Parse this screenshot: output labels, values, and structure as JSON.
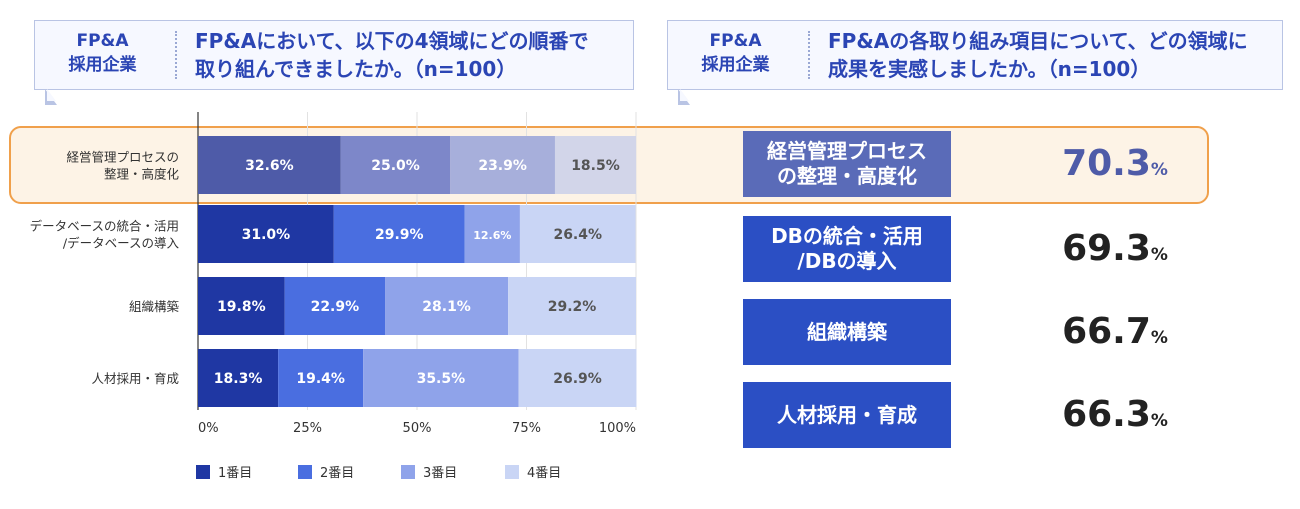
{
  "left_header": {
    "tag_line1": "FP&A",
    "tag_line2": "採用企業",
    "question_line1": "FP&Aにおいて、以下の4領域にどの順番で",
    "question_line2": "取り組んできましたか。（n=100）"
  },
  "right_header": {
    "tag_line1": "FP&A",
    "tag_line2": "採用企業",
    "question_line1": "FP&Aの各取り組み項目について、どの領域に",
    "question_line2": "成果を実感しましたか。（n=100）"
  },
  "chart_data": {
    "type": "bar",
    "orientation": "horizontal",
    "stacked": true,
    "categories": [
      [
        "経営管理プロセスの",
        "整理・高度化"
      ],
      [
        "データベースの統合・活用",
        "/データベースの導入"
      ],
      [
        "組織構築"
      ],
      [
        "人材採用・育成"
      ]
    ],
    "series": [
      {
        "name": "1番目",
        "color": "#1f37a3",
        "values": [
          32.6,
          31.0,
          19.8,
          18.3
        ]
      },
      {
        "name": "2番目",
        "color": "#4a6ee0",
        "values": [
          25.0,
          29.9,
          22.9,
          19.4
        ]
      },
      {
        "name": "3番目",
        "color": "#8fa3ea",
        "values": [
          23.9,
          12.6,
          28.1,
          35.5
        ]
      },
      {
        "name": "4番目",
        "color": "#c9d5f5",
        "values": [
          18.5,
          26.4,
          29.2,
          26.9
        ]
      }
    ],
    "highlight_row": 0,
    "highlight_colors": [
      "#4e5ba8",
      "#7d87c9",
      "#a7afdb",
      "#d2d5e9"
    ],
    "value_labels": [
      [
        "32.6%",
        "25.0%",
        "23.9%",
        "18.5%"
      ],
      [
        "31.0%",
        "29.9%",
        "12.6%",
        "26.4%"
      ],
      [
        "19.8%",
        "22.9%",
        "28.1%",
        "29.2%"
      ],
      [
        "18.3%",
        "19.4%",
        "35.5%",
        "26.9%"
      ]
    ],
    "xlim": [
      0,
      100
    ],
    "xticks": [
      "0%",
      "25%",
      "50%",
      "75%",
      "100%"
    ],
    "grid": true,
    "legend_position": "bottom"
  },
  "results": [
    {
      "label": "経営管理プロセス\nの整理・高度化",
      "value": "70.3",
      "unit": "%",
      "highlight": true
    },
    {
      "label": "DBの統合・活用\n/DBの導入",
      "value": "69.3",
      "unit": "%",
      "highlight": false
    },
    {
      "label": "組織構築",
      "value": "66.7",
      "unit": "%",
      "highlight": false
    },
    {
      "label": "人材採用・育成",
      "value": "66.3",
      "unit": "%",
      "highlight": false
    }
  ],
  "colors": {
    "primary": "#2b4fc4",
    "highlight_box": "#5a6bb8",
    "highlight_value": "#4e5ba8",
    "accent_border": "#f0a04b"
  }
}
